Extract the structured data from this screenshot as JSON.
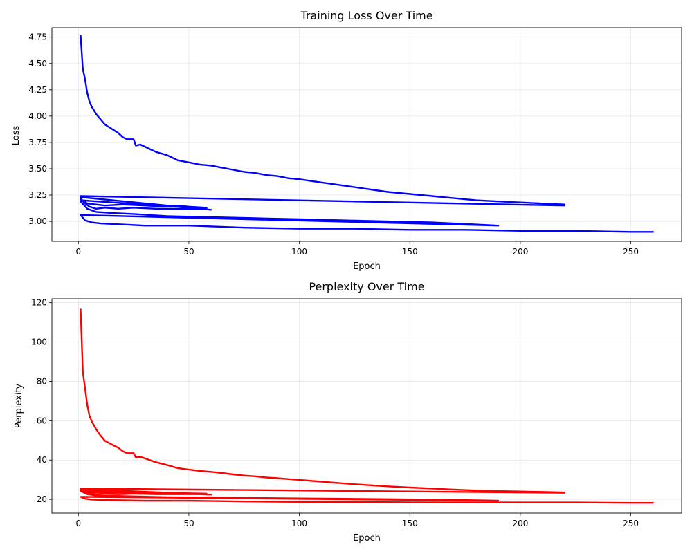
{
  "chart_data": [
    {
      "type": "line",
      "title": "Training Loss Over Time",
      "xlabel": "Epoch",
      "ylabel": "Loss",
      "xlim": [
        -12,
        273
      ],
      "ylim": [
        2.81,
        4.84
      ],
      "xticks": [
        0,
        50,
        100,
        150,
        200,
        250
      ],
      "yticks": [
        3.0,
        3.25,
        3.5,
        3.75,
        4.0,
        4.25,
        4.5,
        4.75
      ],
      "ytick_labels": [
        "3.00",
        "3.25",
        "3.50",
        "3.75",
        "4.00",
        "4.25",
        "4.50",
        "4.75"
      ],
      "grid": true,
      "color": "#0000ff",
      "segments": [
        {
          "x": [
            1,
            2,
            3,
            4,
            5,
            6,
            8,
            10,
            12,
            15,
            18,
            20,
            22,
            25,
            26,
            28,
            30,
            35,
            40,
            45,
            50,
            55,
            60,
            65,
            70,
            75,
            80,
            85,
            90,
            95,
            100,
            110,
            120,
            130,
            140,
            150,
            160,
            170,
            180,
            190,
            200,
            210,
            220
          ],
          "y": [
            4.76,
            4.45,
            4.35,
            4.22,
            4.14,
            4.09,
            4.02,
            3.97,
            3.92,
            3.88,
            3.84,
            3.8,
            3.78,
            3.78,
            3.72,
            3.73,
            3.71,
            3.66,
            3.63,
            3.58,
            3.56,
            3.54,
            3.53,
            3.51,
            3.49,
            3.47,
            3.46,
            3.44,
            3.43,
            3.41,
            3.4,
            3.37,
            3.34,
            3.31,
            3.28,
            3.26,
            3.24,
            3.22,
            3.2,
            3.19,
            3.18,
            3.17,
            3.16
          ]
        },
        {
          "x": [
            220,
            1
          ],
          "y": [
            3.15,
            3.24
          ]
        },
        {
          "x": [
            1,
            3,
            5,
            8,
            12,
            18,
            25,
            35,
            45,
            55,
            60
          ],
          "y": [
            3.22,
            3.17,
            3.14,
            3.12,
            3.13,
            3.12,
            3.13,
            3.12,
            3.12,
            3.12,
            3.11
          ]
        },
        {
          "x": [
            60,
            1
          ],
          "y": [
            3.11,
            3.23
          ]
        },
        {
          "x": [
            1,
            4,
            8,
            12,
            20,
            30,
            40,
            45,
            50,
            58
          ],
          "y": [
            3.21,
            3.17,
            3.16,
            3.15,
            3.16,
            3.15,
            3.14,
            3.15,
            3.14,
            3.13
          ]
        },
        {
          "x": [
            58,
            1
          ],
          "y": [
            3.12,
            3.2
          ]
        },
        {
          "x": [
            1,
            4,
            8,
            15,
            25,
            40,
            60,
            80,
            100,
            120,
            140,
            160,
            180,
            190
          ],
          "y": [
            3.19,
            3.12,
            3.09,
            3.08,
            3.07,
            3.05,
            3.04,
            3.03,
            3.02,
            3.01,
            3.0,
            2.99,
            2.97,
            2.96
          ]
        },
        {
          "x": [
            190,
            1
          ],
          "y": [
            2.96,
            3.06
          ]
        },
        {
          "x": [
            1,
            3,
            6,
            10,
            20,
            30,
            50,
            75,
            100,
            125,
            150,
            175,
            200,
            225,
            250,
            260
          ],
          "y": [
            3.06,
            3.01,
            2.99,
            2.98,
            2.97,
            2.96,
            2.96,
            2.94,
            2.93,
            2.93,
            2.92,
            2.92,
            2.91,
            2.91,
            2.9,
            2.9
          ]
        }
      ]
    },
    {
      "type": "line",
      "title": "Perplexity Over Time",
      "xlabel": "Epoch",
      "ylabel": "Perplexity",
      "xlim": [
        -12,
        273
      ],
      "ylim": [
        13,
        122
      ],
      "xticks": [
        0,
        50,
        100,
        150,
        200,
        250
      ],
      "yticks": [
        20,
        40,
        60,
        80,
        100,
        120
      ],
      "ytick_labels": [
        "20",
        "40",
        "60",
        "80",
        "100",
        "120"
      ],
      "grid": true,
      "color": "#ff0000",
      "segments": [
        {
          "x": [
            1,
            2,
            3,
            4,
            5,
            6,
            8,
            10,
            12,
            15,
            18,
            20,
            22,
            25,
            26,
            28,
            30,
            35,
            40,
            45,
            50,
            55,
            60,
            65,
            70,
            75,
            80,
            85,
            90,
            95,
            100,
            110,
            120,
            130,
            140,
            150,
            160,
            170,
            180,
            190,
            200,
            210,
            220
          ],
          "y": [
            116.5,
            85.0,
            76.5,
            68.0,
            62.5,
            59.7,
            55.7,
            52.5,
            49.8,
            48.0,
            46.3,
            44.5,
            43.5,
            43.5,
            41.3,
            41.6,
            40.9,
            38.9,
            37.5,
            35.9,
            35.1,
            34.5,
            34.0,
            33.4,
            32.7,
            32.1,
            31.7,
            31.1,
            30.8,
            30.3,
            29.9,
            29.0,
            28.1,
            27.3,
            26.6,
            26.0,
            25.5,
            25.0,
            24.5,
            24.2,
            24.0,
            23.8,
            23.5
          ]
        },
        {
          "x": [
            220,
            1
          ],
          "y": [
            23.3,
            25.5
          ]
        },
        {
          "x": [
            1,
            3,
            5,
            8,
            12,
            18,
            25,
            35,
            45,
            55,
            60
          ],
          "y": [
            25.0,
            23.8,
            23.1,
            22.6,
            22.9,
            22.6,
            22.9,
            22.6,
            22.6,
            22.6,
            22.4
          ]
        },
        {
          "x": [
            60,
            1
          ],
          "y": [
            22.4,
            25.3
          ]
        },
        {
          "x": [
            1,
            4,
            8,
            12,
            20,
            30,
            40,
            45,
            50,
            58
          ],
          "y": [
            24.8,
            23.8,
            23.6,
            23.3,
            23.6,
            23.3,
            23.1,
            23.3,
            23.1,
            22.9
          ]
        },
        {
          "x": [
            58,
            1
          ],
          "y": [
            22.6,
            24.5
          ]
        },
        {
          "x": [
            1,
            4,
            8,
            15,
            25,
            40,
            60,
            80,
            100,
            120,
            140,
            160,
            180,
            190
          ],
          "y": [
            24.3,
            22.6,
            22.0,
            21.8,
            21.5,
            21.1,
            20.9,
            20.7,
            20.5,
            20.3,
            20.1,
            19.9,
            19.5,
            19.3
          ]
        },
        {
          "x": [
            190,
            1
          ],
          "y": [
            19.3,
            21.3
          ]
        },
        {
          "x": [
            1,
            3,
            6,
            10,
            20,
            30,
            50,
            75,
            100,
            125,
            150,
            175,
            200,
            225,
            250,
            260
          ],
          "y": [
            21.3,
            20.3,
            19.9,
            19.7,
            19.5,
            19.3,
            19.3,
            18.9,
            18.7,
            18.7,
            18.5,
            18.5,
            18.4,
            18.4,
            18.2,
            18.2
          ]
        }
      ]
    }
  ]
}
